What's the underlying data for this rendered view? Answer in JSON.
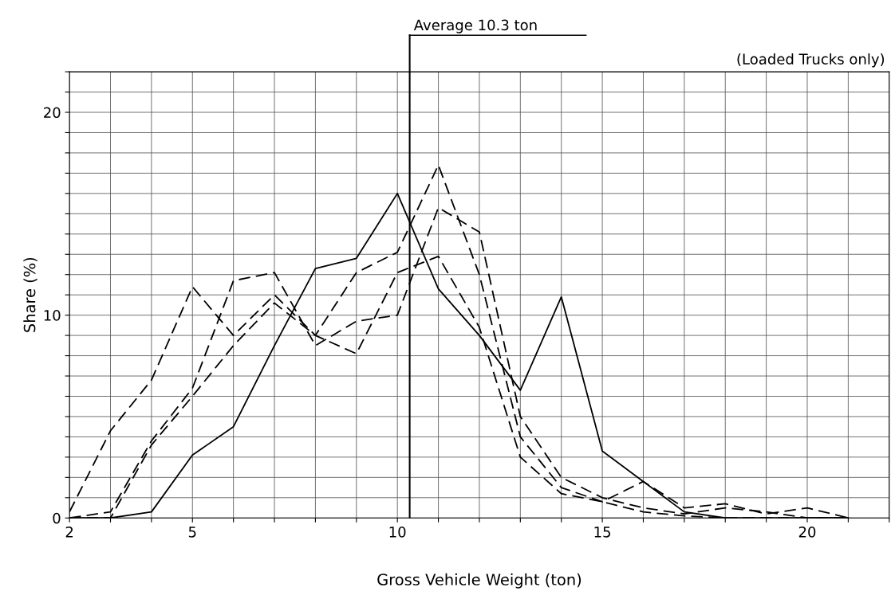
{
  "chart_data": {
    "type": "line",
    "xlabel": "Gross Vehicle Weight (ton)",
    "ylabel": "Share (%)",
    "annotations": [
      "(Loaded Trucks only)"
    ],
    "x": [
      2,
      3,
      4,
      5,
      6,
      7,
      8,
      9,
      10,
      11,
      12,
      13,
      14,
      15,
      16,
      17,
      18,
      19,
      20,
      21
    ],
    "series": [
      {
        "color": "#000000",
        "line_style": "dashed",
        "values": [
          0.3,
          4.3,
          6.8,
          11.4,
          9.0,
          11.0,
          9.0,
          12.1,
          13.1,
          17.4,
          12.0,
          4.0,
          1.5,
          0.8,
          1.8,
          0.5,
          0.7,
          0.2,
          0.5,
          0
        ]
      },
      {
        "color": "#000000",
        "line_style": "dashed",
        "values": [
          0,
          0.3,
          3.8,
          6.4,
          11.7,
          12.1,
          8.5,
          9.7,
          10.0,
          15.3,
          14.1,
          5.0,
          2.0,
          1.0,
          0.5,
          0.2,
          0.5,
          0.3,
          0,
          0
        ]
      },
      {
        "color": "#000000",
        "line_style": "dashed",
        "values": [
          0,
          0,
          3.6,
          6.0,
          8.5,
          10.6,
          9.0,
          8.1,
          12.1,
          12.9,
          9.4,
          3.0,
          1.2,
          0.8,
          0.3,
          0.1,
          0,
          0,
          0,
          0
        ]
      },
      {
        "color": "#000000",
        "line_style": "solid",
        "values": [
          0,
          0,
          0.3,
          3.1,
          4.5,
          8.5,
          12.3,
          12.8,
          16.0,
          11.3,
          9.0,
          6.3,
          10.9,
          3.3,
          1.8,
          0.3,
          0,
          0,
          0,
          0
        ]
      }
    ],
    "xlim": [
      2,
      22
    ],
    "ylim": [
      0,
      22
    ],
    "xticks": [
      2,
      {
        "value": 3,
        "label": null
      },
      {
        "value": 4,
        "label": null
      },
      5,
      {
        "value": 6,
        "label": null
      },
      {
        "value": 7,
        "label": null
      },
      {
        "value": 8,
        "label": null
      },
      {
        "value": 9,
        "label": null
      },
      10,
      {
        "value": 11,
        "label": null
      },
      {
        "value": 12,
        "label": null
      },
      {
        "value": 13,
        "label": null
      },
      {
        "value": 14,
        "label": null
      },
      15,
      {
        "value": 16,
        "label": null
      },
      {
        "value": 17,
        "label": null
      },
      {
        "value": 18,
        "label": null
      },
      {
        "value": 19,
        "label": null
      },
      20,
      {
        "value": 21,
        "label": null
      },
      {
        "value": 22,
        "label": null
      }
    ],
    "yticks": [
      0,
      {
        "value": 1,
        "label": null
      },
      {
        "value": 2,
        "label": null
      },
      {
        "value": 3,
        "label": null
      },
      {
        "value": 4,
        "label": null
      },
      {
        "value": 5,
        "label": null
      },
      {
        "value": 6,
        "label": null
      },
      {
        "value": 7,
        "label": null
      },
      {
        "value": 8,
        "label": null
      },
      {
        "value": 9,
        "label": null
      },
      10,
      {
        "value": 11,
        "label": null
      },
      {
        "value": 12,
        "label": null
      },
      {
        "value": 13,
        "label": null
      },
      {
        "value": 14,
        "label": null
      },
      {
        "value": 15,
        "label": null
      },
      {
        "value": 16,
        "label": null
      },
      {
        "value": 17,
        "label": null
      },
      {
        "value": 18,
        "label": null
      },
      {
        "value": 19,
        "label": null
      },
      20,
      {
        "value": 21,
        "label": null
      },
      {
        "value": 22,
        "label": null
      }
    ],
    "ref_lines": [
      {
        "axis": "x",
        "value": 10.3,
        "label": "Average 10.3 ton",
        "color": "#000000",
        "line_style": "solid"
      }
    ],
    "grid": true,
    "marker": "none"
  }
}
